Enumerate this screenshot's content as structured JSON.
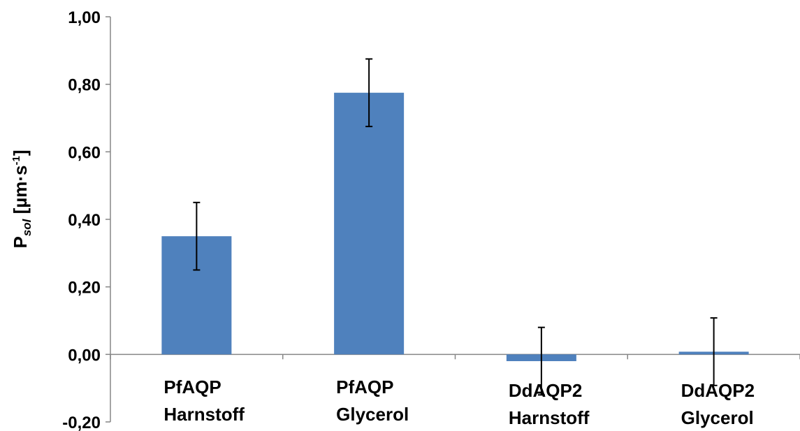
{
  "chart_data": {
    "type": "bar",
    "title": "",
    "categories": [
      [
        "PfAQP",
        "Harnstoff"
      ],
      [
        "PfAQP",
        "Glycerol"
      ],
      [
        "DdAQP2",
        "Harnstoff"
      ],
      [
        "DdAQP2",
        "Glycerol"
      ]
    ],
    "values": [
      0.35,
      0.775,
      -0.02,
      0.008
    ],
    "error": [
      0.1,
      0.1,
      0.1,
      0.1
    ],
    "ylabel": {
      "main": "P",
      "subscript": "sol",
      "unit_open": " [µm·s",
      "superscript": "-1",
      "unit_close": "]"
    },
    "ylim": [
      -0.2,
      1.0
    ],
    "yticks": [
      -0.2,
      0.0,
      0.2,
      0.4,
      0.6,
      0.8,
      1.0
    ],
    "ytick_labels": [
      "-0,20",
      "0,00",
      "0,20",
      "0,40",
      "0,60",
      "0,80",
      "1,00"
    ],
    "grid": false,
    "legend": "none",
    "bar_color": "#4F81BD",
    "axis_color": "#868686",
    "error_color": "#000000"
  }
}
